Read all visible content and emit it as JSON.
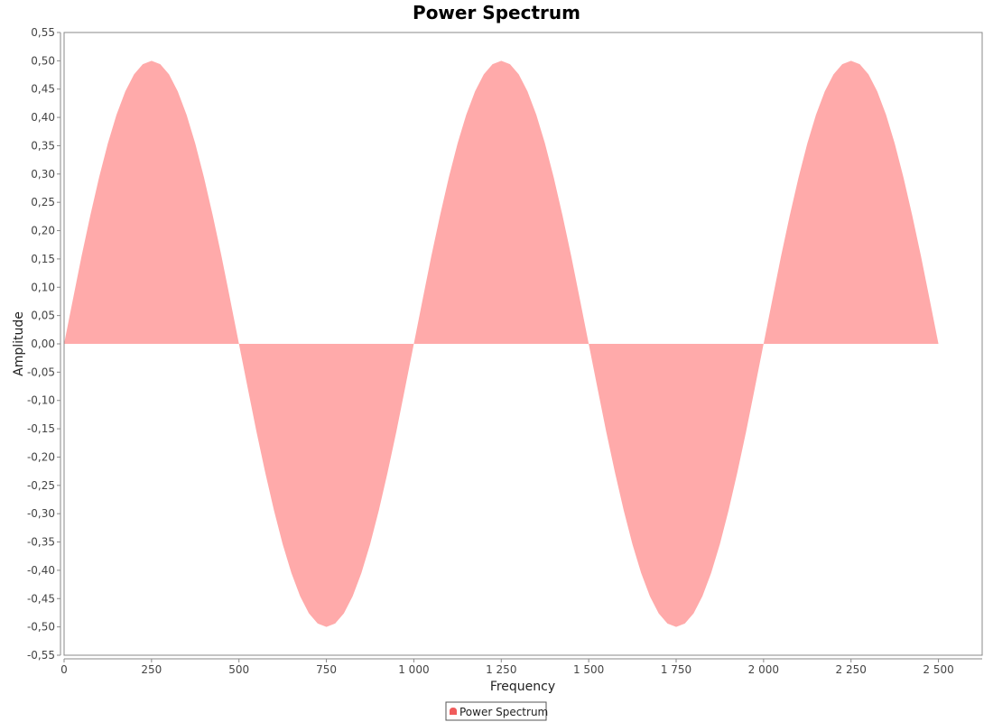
{
  "chart_data": {
    "type": "area",
    "title": "Power Spectrum",
    "xlabel": "Frequency",
    "ylabel": "Amplitude",
    "xlim": [
      0,
      2625
    ],
    "ylim": [
      -0.55,
      0.55
    ],
    "x_ticks": [
      0,
      250,
      500,
      750,
      1000,
      1250,
      1500,
      1750,
      2000,
      2250,
      2500
    ],
    "x_tick_labels": [
      "0",
      "250",
      "500",
      "750",
      "1 000",
      "1 250",
      "1 500",
      "1 750",
      "2 000",
      "2 250",
      "2 500"
    ],
    "y_ticks": [
      0.55,
      0.5,
      0.45,
      0.4,
      0.35,
      0.3,
      0.25,
      0.2,
      0.15,
      0.1,
      0.05,
      0.0,
      -0.05,
      -0.1,
      -0.15,
      -0.2,
      -0.25,
      -0.3,
      -0.35,
      -0.4,
      -0.45,
      -0.5,
      -0.55
    ],
    "y_tick_labels": [
      "0,55",
      "0,50",
      "0,45",
      "0,40",
      "0,35",
      "0,30",
      "0,25",
      "0,20",
      "0,15",
      "0,10",
      "0,05",
      "0,00",
      "-0,05",
      "-0,10",
      "-0,15",
      "-0,20",
      "-0,25",
      "-0,30",
      "-0,35",
      "-0,40",
      "-0,45",
      "-0,50",
      "-0,55"
    ],
    "grid": false,
    "legend_position": "bottom-center",
    "series": [
      {
        "name": "Power Spectrum",
        "color": "#ffaaaa",
        "x": [
          0,
          25,
          50,
          75,
          100,
          125,
          150,
          175,
          200,
          225,
          250,
          275,
          300,
          325,
          350,
          375,
          400,
          425,
          450,
          475,
          500,
          525,
          550,
          575,
          600,
          625,
          650,
          675,
          700,
          725,
          750,
          775,
          800,
          825,
          850,
          875,
          900,
          925,
          950,
          975,
          1000,
          1025,
          1050,
          1075,
          1100,
          1125,
          1150,
          1175,
          1200,
          1225,
          1250,
          1275,
          1300,
          1325,
          1350,
          1375,
          1400,
          1425,
          1450,
          1475,
          1500,
          1525,
          1550,
          1575,
          1600,
          1625,
          1650,
          1675,
          1700,
          1725,
          1750,
          1775,
          1800,
          1825,
          1850,
          1875,
          1900,
          1925,
          1950,
          1975,
          2000,
          2025,
          2050,
          2075,
          2100,
          2125,
          2150,
          2175,
          2200,
          2225,
          2250,
          2275,
          2300,
          2325,
          2350,
          2375,
          2400,
          2425,
          2450,
          2475,
          2500
        ],
        "values": [
          0.0,
          0.078,
          0.155,
          0.227,
          0.294,
          0.354,
          0.405,
          0.446,
          0.476,
          0.494,
          0.5,
          0.494,
          0.476,
          0.446,
          0.405,
          0.354,
          0.294,
          0.227,
          0.155,
          0.078,
          0.0,
          -0.078,
          -0.155,
          -0.227,
          -0.294,
          -0.354,
          -0.405,
          -0.446,
          -0.476,
          -0.494,
          -0.5,
          -0.494,
          -0.476,
          -0.446,
          -0.405,
          -0.354,
          -0.294,
          -0.227,
          -0.155,
          -0.078,
          0.0,
          0.078,
          0.155,
          0.227,
          0.294,
          0.354,
          0.405,
          0.446,
          0.476,
          0.494,
          0.5,
          0.494,
          0.476,
          0.446,
          0.405,
          0.354,
          0.294,
          0.227,
          0.155,
          0.078,
          0.0,
          -0.078,
          -0.155,
          -0.227,
          -0.294,
          -0.354,
          -0.405,
          -0.446,
          -0.476,
          -0.494,
          -0.5,
          -0.494,
          -0.476,
          -0.446,
          -0.405,
          -0.354,
          -0.294,
          -0.227,
          -0.155,
          -0.078,
          0.0,
          0.078,
          0.155,
          0.227,
          0.294,
          0.354,
          0.405,
          0.446,
          0.476,
          0.494,
          0.5,
          0.494,
          0.476,
          0.446,
          0.405,
          0.354,
          0.294,
          0.227,
          0.155,
          0.078,
          0.0
        ]
      }
    ]
  }
}
